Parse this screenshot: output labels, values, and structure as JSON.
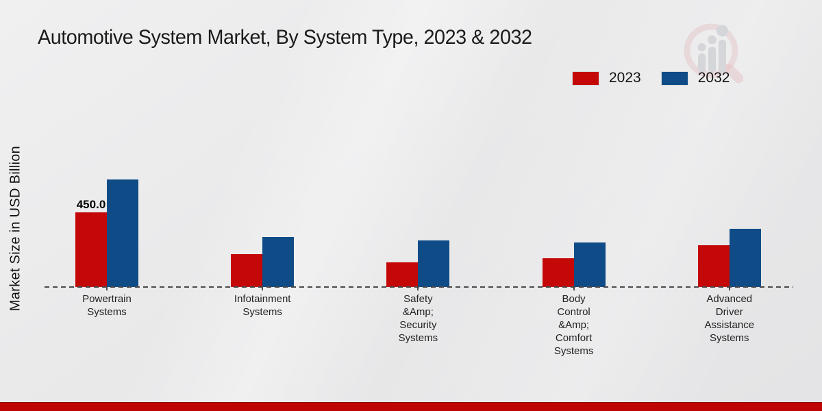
{
  "title": "Automotive System Market, By System Type, 2023 & 2032",
  "ylabel": "Market Size in USD Billion",
  "legend": [
    {
      "label": "2023",
      "color": "#c40808"
    },
    {
      "label": "2032",
      "color": "#0f4c87"
    }
  ],
  "chart_data": {
    "type": "bar",
    "title": "Automotive System Market, By System Type, 2023 & 2032",
    "ylabel": "Market Size in USD Billion",
    "xlabel": "",
    "categories": [
      "Powertrain\nSystems",
      "Infotainment\nSystems",
      "Safety\n&Amp;\nSecurity\nSystems",
      "Body\nControl\n&Amp;\nComfort\nSystems",
      "Advanced\nDriver\nAssistance\nSystems"
    ],
    "series": [
      {
        "name": "2023",
        "color": "#c40808",
        "values": [
          450,
          200,
          150,
          175,
          250
        ]
      },
      {
        "name": "2032",
        "color": "#0f4c87",
        "values": [
          650,
          300,
          280,
          270,
          350
        ]
      }
    ],
    "annotations": [
      {
        "category_index": 0,
        "series_name": "2023",
        "text": "450.0"
      }
    ],
    "ylim": [
      0,
      700
    ],
    "grid": false,
    "axis_style": "dashed-baseline",
    "legend_position": "top-right"
  },
  "footer": {
    "color": "#bf0404"
  },
  "watermark": {
    "name": "market-research-magnifier-logo"
  }
}
